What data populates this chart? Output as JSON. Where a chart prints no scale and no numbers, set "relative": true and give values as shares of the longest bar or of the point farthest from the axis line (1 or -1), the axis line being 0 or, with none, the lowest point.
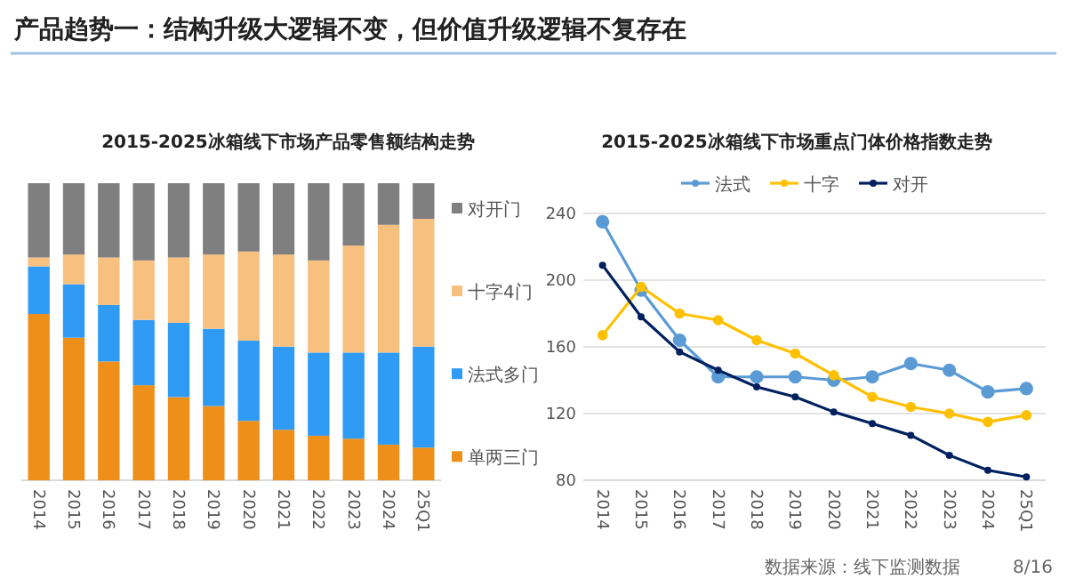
{
  "chart_data": [
    {
      "type": "other",
      "title": "产品趋势一：结构升级大逻辑不变，但价值升级逻辑不复存在",
      "annotations": [
        "数据来源：线下监测数据",
        "8/16"
      ]
    },
    {
      "type": "bar",
      "title": "2015-2025冰箱线下市场产品零售额结构走势",
      "stacked": true,
      "relative": true,
      "legend": "right",
      "categories": [
        "2014",
        "2015",
        "2016",
        "2017",
        "2018",
        "2019",
        "2020",
        "2021",
        "2022",
        "2023",
        "2024",
        "25Q1"
      ],
      "series": [
        {
          "name": "单两三门",
          "color": "#ee8f1a",
          "values": [
            0.56,
            0.48,
            0.4,
            0.32,
            0.28,
            0.25,
            0.2,
            0.17,
            0.15,
            0.14,
            0.12,
            0.11
          ]
        },
        {
          "name": "法式多门",
          "color": "#2f9bf5",
          "values": [
            0.16,
            0.18,
            0.19,
            0.22,
            0.25,
            0.26,
            0.27,
            0.28,
            0.28,
            0.29,
            0.31,
            0.34
          ]
        },
        {
          "name": "十字4门",
          "color": "#f8c07f",
          "values": [
            0.03,
            0.1,
            0.16,
            0.2,
            0.22,
            0.25,
            0.3,
            0.31,
            0.31,
            0.36,
            0.43,
            0.43
          ]
        },
        {
          "name": "对开门",
          "color": "#7f7f7f",
          "values": [
            0.25,
            0.24,
            0.25,
            0.26,
            0.25,
            0.24,
            0.23,
            0.24,
            0.26,
            0.21,
            0.14,
            0.12
          ]
        }
      ]
    },
    {
      "type": "line",
      "title": "2015-2025冰箱线下市场重点门体价格指数走势",
      "legend": "top",
      "grid": "y",
      "marker": "circle",
      "categories": [
        "2014",
        "2015",
        "2016",
        "2017",
        "2018",
        "2019",
        "2020",
        "2021",
        "2022",
        "2023",
        "2024",
        "25Q1"
      ],
      "ylim": [
        80,
        240
      ],
      "yticks": [
        80,
        120,
        160,
        200,
        240
      ],
      "series": [
        {
          "name": "法式",
          "color": "#5b9bd5",
          "values": [
            235,
            194,
            164,
            142,
            142,
            142,
            140,
            142,
            150,
            146,
            133,
            135
          ]
        },
        {
          "name": "十字",
          "color": "#ffc000",
          "values": [
            167,
            196,
            180,
            176,
            164,
            156,
            143,
            130,
            124,
            120,
            115,
            119
          ]
        },
        {
          "name": "对开",
          "color": "#002060",
          "values": [
            209,
            178,
            157,
            146,
            136,
            130,
            121,
            114,
            107,
            95,
            86,
            82
          ]
        }
      ]
    }
  ]
}
